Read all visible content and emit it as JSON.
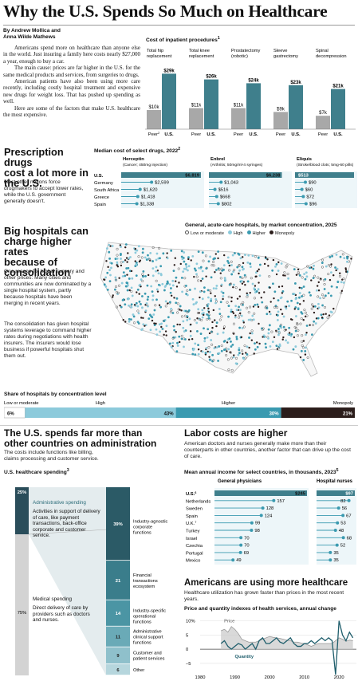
{
  "header": {
    "title": "Why the U.S. Spends So Much on Healthcare",
    "byline1": "By Andrew Mollica and",
    "byline2": "Anna Wilde Mathews"
  },
  "intro": [
    "Americans spend more on healthcare than anyone else in the world. Just insuring a family here costs nearly $27,000 a year, enough to buy a car.",
    "The main cause: prices are far higher in the U.S. for the same medical products and services, from surgeries to drugs.",
    "American patients have also been using more care recently, including costly hospital treatment and expensive new drugs for weight loss. That has pushed up spending as well.",
    "Here are some of the factors that make U.S. healthcare the most expensive."
  ],
  "colors": {
    "teal": "#3f7f8c",
    "gray": "#a8a8a8",
    "lightblue": "#8ccadb",
    "mid": "#3a9ab0",
    "dark": "#2b1d1b",
    "navy": "#2a4d5a"
  },
  "chart_data": [
    {
      "type": "bar",
      "title": "Cost of inpatient procedures",
      "title_sup": "1",
      "categories": [
        "Total hip replacement",
        "Total knee replacement",
        "Prostatectomy (robotic)",
        "Sleeve gastrectomy",
        "Spinal decompression"
      ],
      "category_labels": [
        [
          "Total hip",
          "replacement"
        ],
        [
          "Total knee",
          "replacement"
        ],
        [
          "Prostatectomy",
          "(robotic)"
        ],
        [
          "Sleeve",
          "gastrectomy"
        ],
        [
          "Spinal",
          "decompression"
        ]
      ],
      "series": [
        {
          "name": "Peer",
          "values": [
            10,
            11,
            11,
            9,
            7
          ],
          "labels": [
            "$10k",
            "$11k",
            "$11k",
            "$9k",
            "$7k"
          ]
        },
        {
          "name": "U.S.",
          "values": [
            29,
            26,
            24,
            23,
            21
          ],
          "labels": [
            "$29k",
            "$26k",
            "$24k",
            "$23k",
            "$21k"
          ]
        }
      ],
      "peer_sup": "2",
      "ylim": [
        0,
        30
      ]
    },
    {
      "type": "bar",
      "title": "Median cost of select drugs, 2022",
      "title_sup": "2",
      "countries": [
        "U.S.",
        "Germany",
        "South Africa",
        "Greece",
        "Spain"
      ],
      "drugs": [
        {
          "name": "Herceptin",
          "note": "(Cancer; 450mg injection)",
          "values": [
            6819,
            2599,
            1620,
            1418,
            1338
          ],
          "labels": [
            "$6,819",
            "$2,599",
            "$1,620",
            "$1,418",
            "$1,338"
          ],
          "max": 6819
        },
        {
          "name": "Enbrel",
          "note": "(Arthritis; 50mg/ml-4 syringes)",
          "values": [
            6238,
            1043,
            516,
            668,
            802
          ],
          "labels": [
            "$6,238",
            "$1,043",
            "$516",
            "$668",
            "$802"
          ],
          "max": 6819
        },
        {
          "name": "Eliquis",
          "note": "(Stroke/blood clots; 5mg-60 pills)",
          "values": [
            513,
            90,
            60,
            72,
            96
          ],
          "labels": [
            "$513",
            "$90",
            "$60",
            "$72",
            "$96"
          ],
          "max": 513
        }
      ]
    },
    {
      "type": "bar",
      "title": "Share of hospitals by concentration level",
      "categories": [
        "Low or moderate",
        "High",
        "Higher",
        "Monopoly"
      ],
      "values": [
        6,
        43,
        30,
        21
      ],
      "labels": [
        "6%",
        "43%",
        "30%",
        "21%"
      ]
    },
    {
      "type": "bar",
      "title": "U.S. healthcare spending",
      "title_sup": "3",
      "categories": [
        "Administrative spending",
        "Medical spending"
      ],
      "values": [
        25,
        75
      ],
      "labels": [
        "25%",
        "75%"
      ],
      "breakdown": [
        {
          "label": "Industry-agnostic corporate functions",
          "value": 39
        },
        {
          "label": "Financial transactions ecosystem",
          "value": 21
        },
        {
          "label": "Industry-specific operational functions",
          "value": 14
        },
        {
          "label": "Administrative clinical support functions",
          "value": 11
        },
        {
          "label": "Customer and patient services",
          "value": 9
        },
        {
          "label": "Other",
          "value": 6
        }
      ]
    },
    {
      "type": "bar",
      "title": "Mean annual income for select countries, in thousands, 2023",
      "title_sup": "5",
      "countries": [
        "U.S.",
        "Netherlands",
        "Sweden",
        "Spain",
        "U.K.",
        "Turkey",
        "Israel",
        "Czechia",
        "Portugal",
        "Mexico"
      ],
      "country_sups": [
        "6",
        "",
        "",
        "",
        "7",
        "",
        "",
        "",
        "",
        ""
      ],
      "series": [
        {
          "name": "General physicians",
          "values": [
            245,
            157,
            128,
            124,
            99,
            98,
            70,
            70,
            69,
            49
          ],
          "labels": [
            "$245",
            "157",
            "128",
            "124",
            "99",
            "98",
            "70",
            "70",
            "69",
            "49"
          ],
          "max": 245
        },
        {
          "name": "Hospital nurses",
          "values": [
            97,
            82,
            56,
            67,
            53,
            48,
            68,
            52,
            35,
            35
          ],
          "labels": [
            "$97",
            "82",
            "56",
            "67",
            "53",
            "48",
            "68",
            "52",
            "35",
            "35"
          ],
          "max": 97
        }
      ]
    },
    {
      "type": "line",
      "title": "Price and quantity indexes of health services, annual change",
      "series": [
        {
          "name": "Price",
          "values": [
            6.5,
            7,
            6,
            8,
            7,
            5.5,
            3.5,
            3,
            2.5,
            2.5,
            2.5,
            3,
            3.5,
            4,
            4.5,
            4.2,
            4,
            3.8,
            3.5,
            3.2,
            3,
            2.5,
            2.5,
            2.2,
            2,
            1.5,
            1,
            1.5,
            2,
            2,
            2,
            2,
            2,
            3,
            4,
            3.5,
            2.8,
            3.2,
            3
          ]
        },
        {
          "name": "Quantity",
          "values": [
            2,
            3,
            1,
            0,
            1,
            2,
            1.5,
            0,
            1,
            2,
            0,
            3,
            4,
            2,
            2,
            3,
            4,
            2.5,
            2,
            3,
            4,
            2,
            1,
            1,
            2,
            2,
            3,
            2,
            3,
            4,
            3,
            4,
            3,
            -9,
            10,
            5,
            3,
            6,
            4
          ]
        }
      ],
      "years_start": 1986,
      "xticks": [
        "1980",
        "1990",
        "2000",
        "2010",
        "2020"
      ],
      "yticks": [
        "10%",
        "5",
        "0",
        "–5"
      ],
      "ylim": [
        -7,
        11
      ]
    }
  ],
  "drugs_section": {
    "heading": "Prescription drugs cost a lot more in the U.S.",
    "heading_lines": [
      "Prescription drugs",
      "cost a lot more in",
      "the U.S."
    ],
    "body": "Most other nations force drugmakers to accept lower rates, while the U.S. government generally doesn't."
  },
  "hospitals_section": {
    "heading_lines": [
      "Big hospitals can",
      "charge higher rates",
      "because of",
      "consolidation"
    ],
    "body1": "One reason for higher surgery and other prices: Many cities and communities are now dominated by a single hospital system, partly because hospitals have been merging in recent years.",
    "body2": "The consolidation has given hospital systems leverage to command higher rates during negotiations with health insurers. The insurers would lose business if powerful hospitals shut them out.",
    "map_title": "General, acute-care hospitals, by market concentration, 2025",
    "legend": [
      "Low or moderate",
      "High",
      "Higher",
      "Monopoly"
    ]
  },
  "admin_section": {
    "heading_lines": [
      "The U.S. spends far more than",
      "other countries on administration"
    ],
    "body_lines": [
      "The costs include functions like billing,",
      "claims processing and customer service."
    ],
    "admin_label": "Administrative spending",
    "admin_desc": "Activities in support of delivery of care, like payment transactions, back-office corporate and customer service.",
    "medical_label": "Medical spending",
    "medical_desc": "Direct delivery of care by providers such as doctors and nurses."
  },
  "labor_section": {
    "heading": "Labor costs are higher",
    "body": "American doctors and nurses generally make more than their counterparts in other countries, another factor that can drive up the cost of care."
  },
  "usage_section": {
    "heading": "Americans are using more healthcare",
    "body": "Healthcare utilization has grown faster than prices in the most recent years."
  }
}
